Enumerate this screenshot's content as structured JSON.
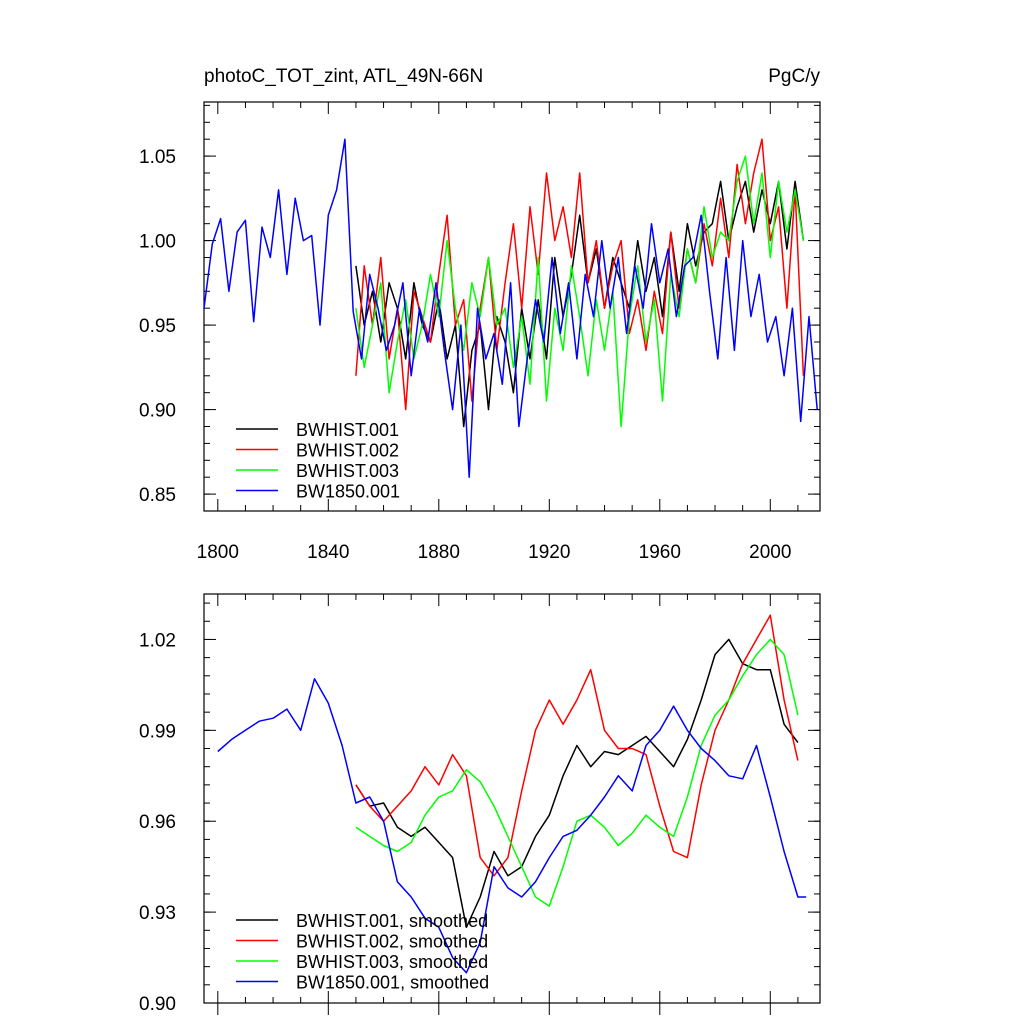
{
  "chart_data": [
    {
      "type": "line",
      "title_left": "photoC_TOT_zint, ATL_49N-66N",
      "title_right": "PgC/y",
      "xlabel": "",
      "ylabel": "",
      "xlim": [
        1795,
        2018
      ],
      "ylim": [
        0.84,
        1.082
      ],
      "xticks": [
        1800,
        1840,
        1880,
        1920,
        1960,
        2000
      ],
      "xtick_labels": [
        "1800",
        "1840",
        "1880",
        "1920",
        "1960",
        "2000"
      ],
      "yticks": [
        0.85,
        0.9,
        0.95,
        1.0,
        1.05
      ],
      "ytick_labels": [
        "0.85",
        "0.90",
        "0.95",
        "1.00",
        "1.05"
      ],
      "legend": "bottom-left",
      "series": [
        {
          "name": "BWHIST.001",
          "color": "#000000",
          "x": [
            1850,
            1853,
            1856,
            1859,
            1862,
            1865,
            1868,
            1871,
            1874,
            1877,
            1880,
            1883,
            1886,
            1889,
            1892,
            1895,
            1898,
            1901,
            1904,
            1907,
            1910,
            1913,
            1916,
            1919,
            1922,
            1925,
            1928,
            1931,
            1934,
            1937,
            1940,
            1943,
            1946,
            1949,
            1952,
            1955,
            1958,
            1961,
            1964,
            1967,
            1970,
            1973,
            1976,
            1979,
            1982,
            1985,
            1988,
            1991,
            1994,
            1997,
            2000,
            2003,
            2006,
            2009,
            2012
          ],
          "y": [
            0.985,
            0.95,
            0.97,
            0.94,
            0.975,
            0.96,
            0.93,
            0.975,
            0.95,
            0.94,
            0.965,
            0.93,
            0.95,
            0.89,
            0.935,
            0.95,
            0.9,
            0.955,
            0.94,
            0.91,
            0.96,
            0.93,
            0.965,
            0.93,
            0.99,
            0.955,
            0.98,
            1.015,
            0.975,
            0.995,
            0.96,
            0.99,
            0.975,
            0.96,
            1.0,
            0.97,
            0.99,
            0.955,
            1.005,
            0.97,
            1.01,
            0.985,
            1.005,
            1.01,
            1.035,
            1.0,
            1.02,
            1.035,
            1.005,
            1.03,
            1.01,
            1.035,
            0.995,
            1.035,
            1.0
          ]
        },
        {
          "name": "BWHIST.002",
          "color": "#ff0000",
          "x": [
            1850,
            1853,
            1856,
            1859,
            1862,
            1865,
            1868,
            1871,
            1874,
            1877,
            1880,
            1883,
            1886,
            1889,
            1892,
            1895,
            1898,
            1901,
            1904,
            1907,
            1910,
            1913,
            1916,
            1919,
            1922,
            1925,
            1928,
            1931,
            1934,
            1937,
            1940,
            1943,
            1946,
            1949,
            1952,
            1955,
            1958,
            1961,
            1964,
            1967,
            1970,
            1973,
            1976,
            1979,
            1982,
            1985,
            1988,
            1991,
            1994,
            1997,
            2000,
            2003,
            2006,
            2009,
            2012
          ],
          "y": [
            0.92,
            0.985,
            0.95,
            0.99,
            0.93,
            0.96,
            0.9,
            0.97,
            0.955,
            0.94,
            0.98,
            1.015,
            0.95,
            0.965,
            0.905,
            0.96,
            0.99,
            0.935,
            0.975,
            1.01,
            0.96,
            1.02,
            0.98,
            1.04,
            1.0,
            1.02,
            0.99,
            1.04,
            0.975,
            1.0,
            0.96,
            0.985,
            1.0,
            0.945,
            0.965,
            0.935,
            0.97,
            0.945,
            1.005,
            0.96,
            0.995,
            0.975,
            1.01,
            0.985,
            1.025,
            0.99,
            1.045,
            1.01,
            1.04,
            1.06,
            1.0,
            1.02,
            0.96,
            1.03,
            0.92
          ]
        },
        {
          "name": "BWHIST.003",
          "color": "#00ff00",
          "x": [
            1850,
            1853,
            1856,
            1859,
            1862,
            1865,
            1868,
            1871,
            1874,
            1877,
            1880,
            1883,
            1886,
            1889,
            1892,
            1895,
            1898,
            1901,
            1904,
            1907,
            1910,
            1913,
            1916,
            1919,
            1922,
            1925,
            1928,
            1931,
            1934,
            1937,
            1940,
            1943,
            1946,
            1949,
            1952,
            1955,
            1958,
            1961,
            1964,
            1967,
            1970,
            1973,
            1976,
            1979,
            1982,
            1985,
            1988,
            1991,
            1994,
            1997,
            2000,
            2003,
            2006,
            2009,
            2012
          ],
          "y": [
            0.96,
            0.925,
            0.95,
            0.975,
            0.91,
            0.94,
            0.965,
            0.93,
            0.95,
            0.98,
            0.955,
            1.0,
            0.96,
            0.935,
            0.975,
            0.955,
            0.99,
            0.95,
            0.96,
            0.925,
            0.955,
            0.915,
            0.99,
            0.905,
            0.96,
            0.935,
            0.985,
            0.955,
            0.92,
            0.965,
            0.935,
            0.97,
            0.89,
            0.955,
            0.985,
            0.94,
            0.965,
            0.905,
            0.98,
            0.955,
            0.995,
            0.975,
            1.02,
            0.99,
            1.005,
            1.0,
            1.035,
            1.05,
            1.01,
            1.04,
            0.99,
            1.035,
            1.005,
            1.03,
            1.0
          ]
        },
        {
          "name": "BW1850.001",
          "color": "#0000ff",
          "x": [
            1795,
            1798,
            1801,
            1804,
            1807,
            1810,
            1813,
            1816,
            1819,
            1822,
            1825,
            1828,
            1831,
            1834,
            1837,
            1840,
            1843,
            1846,
            1849,
            1852,
            1855,
            1858,
            1861,
            1864,
            1867,
            1870,
            1873,
            1876,
            1879,
            1882,
            1885,
            1888,
            1891,
            1894,
            1897,
            1900,
            1903,
            1906,
            1909,
            1912,
            1915,
            1918,
            1921,
            1924,
            1927,
            1930,
            1933,
            1936,
            1939,
            1942,
            1945,
            1948,
            1951,
            1954,
            1957,
            1960,
            1963,
            1966,
            1969,
            1972,
            1975,
            1978,
            1981,
            1984,
            1987,
            1990,
            1993,
            1996,
            1999,
            2002,
            2005,
            2008,
            2011,
            2014,
            2017
          ],
          "y": [
            0.96,
            0.998,
            1.013,
            0.97,
            1.005,
            1.012,
            0.952,
            1.008,
            0.99,
            1.03,
            0.98,
            1.025,
            1.0,
            1.003,
            0.95,
            1.015,
            1.03,
            1.06,
            0.958,
            0.93,
            0.98,
            0.96,
            0.935,
            0.95,
            0.975,
            0.92,
            0.96,
            0.94,
            0.975,
            0.935,
            0.9,
            0.95,
            0.86,
            0.96,
            0.93,
            0.945,
            0.915,
            0.975,
            0.89,
            0.93,
            0.965,
            0.94,
            0.99,
            0.945,
            0.975,
            0.93,
            0.98,
            0.955,
            1.0,
            0.96,
            0.99,
            0.945,
            0.985,
            0.96,
            1.01,
            0.975,
            0.995,
            0.955,
            0.985,
            0.99,
            1.015,
            0.97,
            0.93,
            0.99,
            0.935,
            1.0,
            0.955,
            0.98,
            0.94,
            0.955,
            0.92,
            0.96,
            0.893,
            0.955,
            0.9
          ]
        }
      ]
    },
    {
      "type": "line",
      "title_left": "",
      "title_right": "",
      "xlabel": "",
      "ylabel": "",
      "xlim": [
        1795,
        2018
      ],
      "ylim": [
        0.9,
        1.035
      ],
      "xticks": [
        1800,
        1840,
        1880,
        1920,
        1960,
        2000
      ],
      "xtick_labels": [],
      "yticks": [
        0.9,
        0.93,
        0.96,
        0.99,
        1.02
      ],
      "ytick_labels": [
        "0.90",
        "0.93",
        "0.96",
        "0.99",
        "1.02"
      ],
      "legend": "bottom-left",
      "series": [
        {
          "name": "BWHIST.001, smoothed",
          "color": "#000000",
          "x": [
            1850,
            1855,
            1860,
            1865,
            1870,
            1875,
            1880,
            1885,
            1890,
            1895,
            1900,
            1905,
            1910,
            1915,
            1920,
            1925,
            1930,
            1935,
            1940,
            1945,
            1950,
            1955,
            1960,
            1965,
            1970,
            1975,
            1980,
            1985,
            1990,
            1995,
            2000,
            2005,
            2010
          ],
          "y": [
            0.972,
            0.965,
            0.966,
            0.958,
            0.955,
            0.958,
            0.953,
            0.948,
            0.925,
            0.935,
            0.95,
            0.942,
            0.945,
            0.955,
            0.962,
            0.975,
            0.985,
            0.978,
            0.983,
            0.982,
            0.985,
            0.988,
            0.983,
            0.978,
            0.987,
            1.0,
            1.015,
            1.02,
            1.012,
            1.01,
            1.01,
            0.992,
            0.986
          ]
        },
        {
          "name": "BWHIST.002, smoothed",
          "color": "#ff0000",
          "x": [
            1850,
            1855,
            1860,
            1865,
            1870,
            1875,
            1880,
            1885,
            1890,
            1895,
            1900,
            1905,
            1910,
            1915,
            1920,
            1925,
            1930,
            1935,
            1940,
            1945,
            1950,
            1955,
            1960,
            1965,
            1970,
            1975,
            1980,
            1985,
            1990,
            1995,
            2000,
            2005,
            2010
          ],
          "y": [
            0.972,
            0.965,
            0.96,
            0.965,
            0.97,
            0.978,
            0.972,
            0.982,
            0.975,
            0.948,
            0.942,
            0.948,
            0.97,
            0.99,
            1.0,
            0.992,
            1.0,
            1.01,
            0.99,
            0.984,
            0.984,
            0.982,
            0.965,
            0.95,
            0.948,
            0.972,
            0.99,
            1.0,
            1.012,
            1.02,
            1.028,
            1.0,
            0.98
          ]
        },
        {
          "name": "BWHIST.003, smoothed",
          "color": "#00ff00",
          "x": [
            1850,
            1855,
            1860,
            1865,
            1870,
            1875,
            1880,
            1885,
            1890,
            1895,
            1900,
            1905,
            1910,
            1915,
            1920,
            1925,
            1930,
            1935,
            1940,
            1945,
            1950,
            1955,
            1960,
            1965,
            1970,
            1975,
            1980,
            1985,
            1990,
            1995,
            2000,
            2005,
            2010
          ],
          "y": [
            0.958,
            0.955,
            0.952,
            0.95,
            0.953,
            0.962,
            0.968,
            0.97,
            0.977,
            0.973,
            0.965,
            0.955,
            0.945,
            0.935,
            0.932,
            0.945,
            0.96,
            0.962,
            0.958,
            0.952,
            0.956,
            0.962,
            0.958,
            0.955,
            0.968,
            0.985,
            0.995,
            1.0,
            1.008,
            1.015,
            1.02,
            1.015,
            0.995
          ]
        },
        {
          "name": "BW1850.001, smoothed",
          "color": "#0000ff",
          "x": [
            1800,
            1805,
            1810,
            1815,
            1820,
            1825,
            1830,
            1835,
            1840,
            1845,
            1850,
            1855,
            1860,
            1865,
            1870,
            1875,
            1880,
            1885,
            1890,
            1895,
            1900,
            1905,
            1910,
            1915,
            1920,
            1925,
            1930,
            1935,
            1940,
            1945,
            1950,
            1955,
            1960,
            1965,
            1970,
            1975,
            1980,
            1985,
            1990,
            1995,
            2000,
            2005,
            2010,
            2013
          ],
          "y": [
            0.983,
            0.987,
            0.99,
            0.993,
            0.994,
            0.997,
            0.99,
            1.007,
            0.999,
            0.985,
            0.966,
            0.968,
            0.96,
            0.94,
            0.935,
            0.928,
            0.925,
            0.915,
            0.91,
            0.92,
            0.945,
            0.938,
            0.935,
            0.94,
            0.948,
            0.955,
            0.957,
            0.962,
            0.968,
            0.975,
            0.97,
            0.985,
            0.99,
            0.998,
            0.99,
            0.984,
            0.98,
            0.975,
            0.974,
            0.985,
            0.968,
            0.95,
            0.935,
            0.935
          ]
        }
      ]
    }
  ]
}
